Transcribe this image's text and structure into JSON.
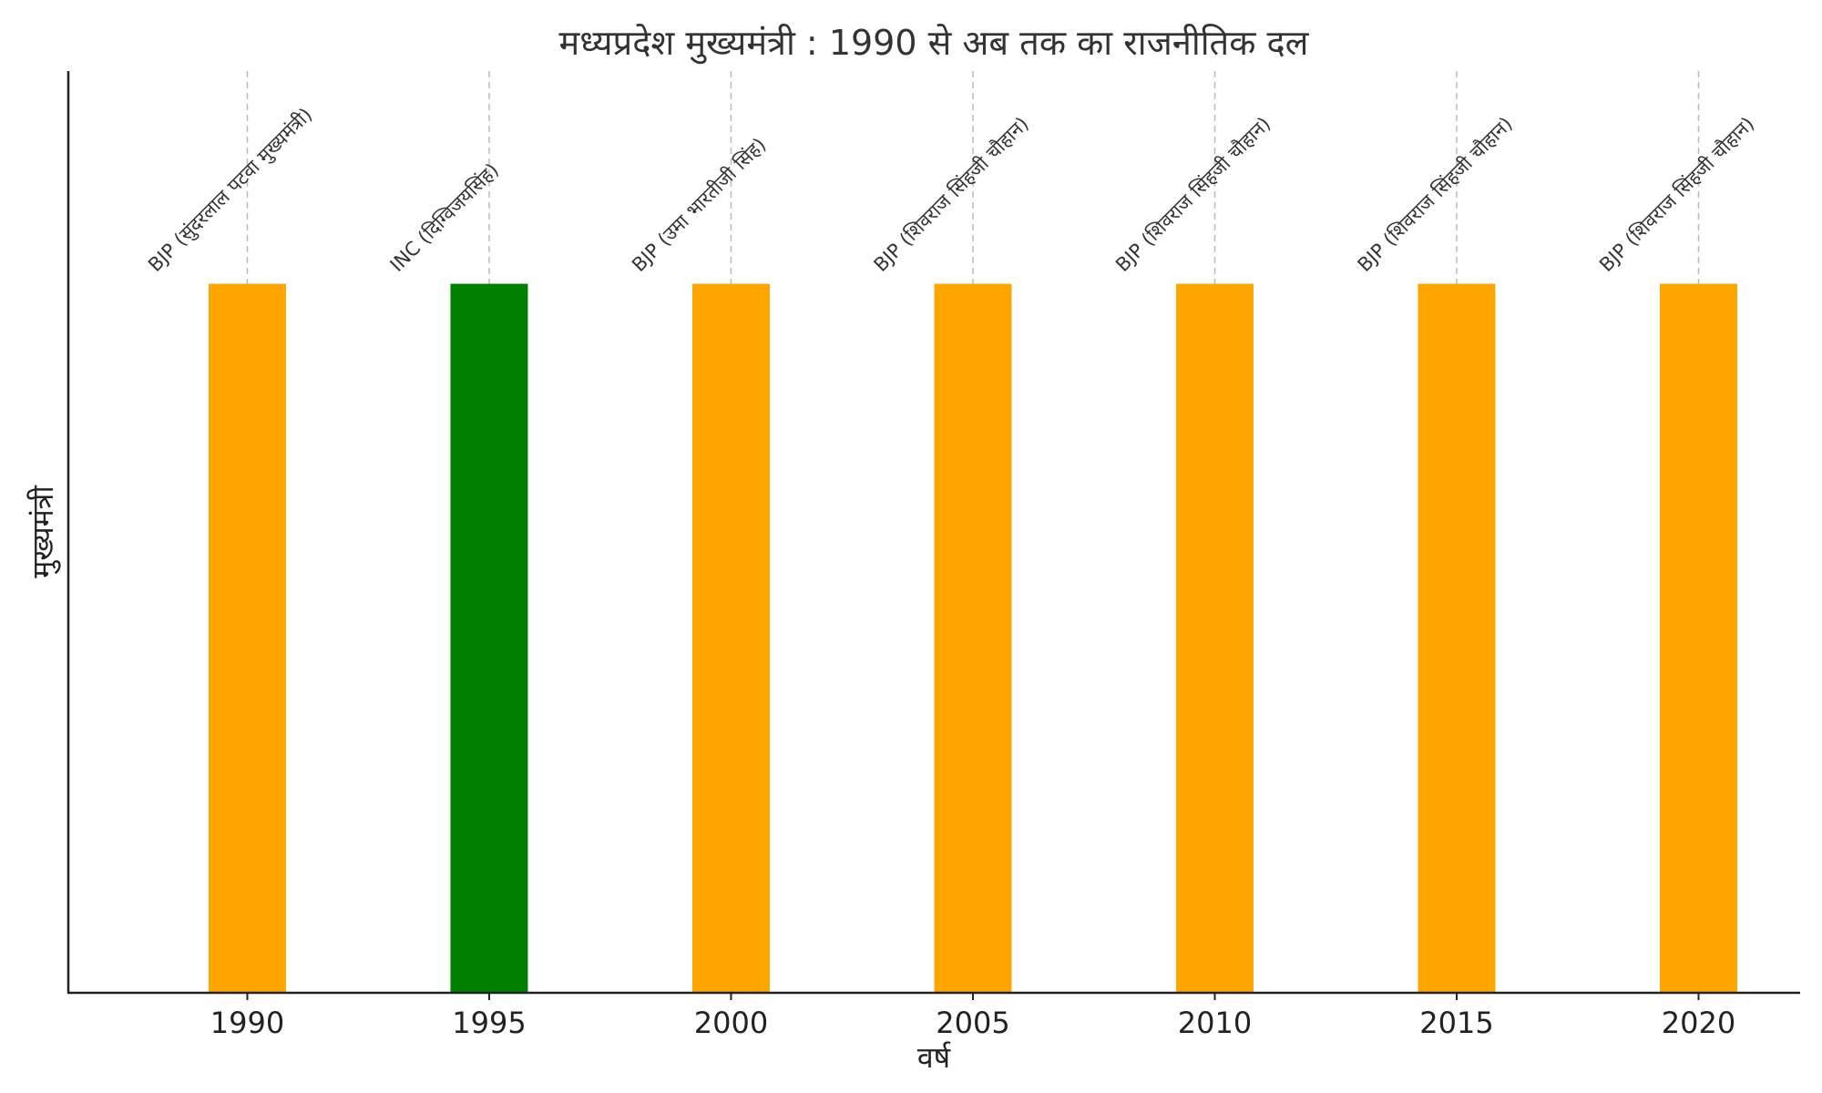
{
  "chart_data": {
    "type": "bar",
    "title": "मध्यप्रदेश मुख्यमंत्री : 1990 से अब तक का राजनीतिक दल",
    "xlabel": "वर्ष",
    "ylabel": "मुख्यमंत्री",
    "categories": [
      "1990",
      "1995",
      "2000",
      "2005",
      "2010",
      "2015",
      "2020"
    ],
    "values": [
      1,
      1,
      1,
      1,
      1,
      1,
      1
    ],
    "ylim": [
      0,
      1.3
    ],
    "annotations": [
      "BJP (सुंदरलाल पटवा मुख्यमंत्री)",
      "INC (दिग्विजयसिंह)",
      "BJP (उमा भारतीजी सिंह)",
      "BJP (शिवराज सिंहजी चौहान)",
      "BJP (शिवराज सिंहजी चौहान)",
      "BJP (शिवराज सिंहजी चौहान)",
      "BJP (शिवराज सिंहजी चौहान)"
    ],
    "parties": [
      "BJP",
      "INC",
      "BJP",
      "BJP",
      "BJP",
      "BJP",
      "BJP"
    ],
    "party_colors": {
      "BJP": "#FFA500",
      "INC": "#008000"
    },
    "grid": false,
    "guide_lines": "dashed vertical at each year"
  }
}
